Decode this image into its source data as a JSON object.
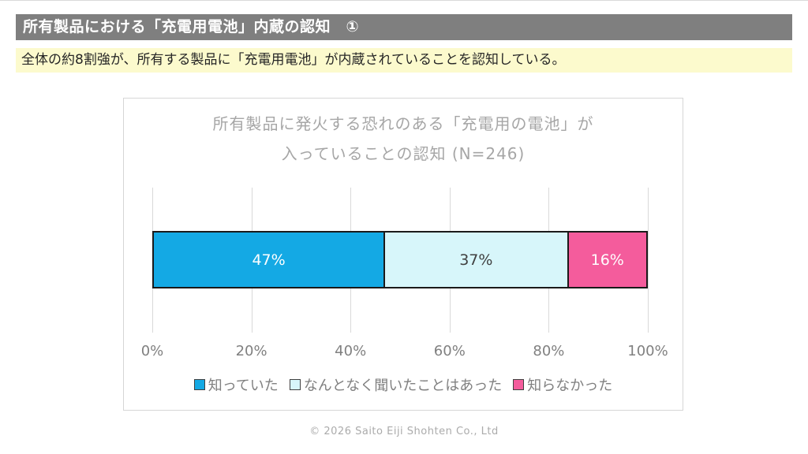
{
  "header": {
    "title": "所有製品における「充電用電池」内蔵の認知　①"
  },
  "summary": {
    "text": "全体の約8割強が、所有する製品に「充電用電池」が内蔵されていることを認知している。"
  },
  "chart_data": {
    "type": "bar",
    "orientation": "horizontal-stacked",
    "title_line1": "所有製品に発火する恐れのある「充電用の電池」が",
    "title_line2": "入っていることの認知",
    "n_label": "(N=246)",
    "sample_size": 246,
    "series": [
      {
        "name": "知っていた",
        "value": 47,
        "label": "47%",
        "color": "#14a9e4",
        "label_color": "#ffffff"
      },
      {
        "name": "なんとなく聞いたことはあった",
        "value": 37,
        "label": "37%",
        "color": "#d7f6fa",
        "label_color": "#404040"
      },
      {
        "name": "知らなかった",
        "value": 16,
        "label": "16%",
        "color": "#f45c9c",
        "label_color": "#ffffff"
      }
    ],
    "x_ticks": [
      "0%",
      "20%",
      "40%",
      "60%",
      "80%",
      "100%"
    ],
    "xlim": [
      0,
      100
    ],
    "grid": true,
    "legend_position": "bottom"
  },
  "footer": {
    "copyright": "© 2026 Saito Eiji Shohten Co., Ltd"
  }
}
